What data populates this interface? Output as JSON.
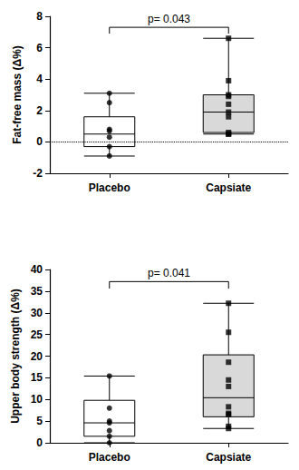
{
  "chart_data": [
    {
      "type": "boxplot",
      "y_label": "Fat-free mass (Δ%)",
      "categories": [
        "Placebo",
        "Capsiate"
      ],
      "boxes": [
        [
          -0.9,
          -0.3,
          0.5,
          1.6,
          3.1
        ],
        [
          0.5,
          0.6,
          1.9,
          3.0,
          6.6
        ]
      ],
      "colors": [
        "#ffffff",
        "#d9d9d9"
      ],
      "points": [
        {
          "marker": "circle",
          "values": [
            3.1,
            2.5,
            0.8,
            0.7,
            0.3,
            -0.3,
            -0.9
          ]
        },
        {
          "marker": "square",
          "values": [
            6.6,
            3.9,
            3.0,
            2.9,
            2.4,
            1.9,
            1.6,
            0.6,
            0.5,
            0.5
          ]
        }
      ],
      "reference_line": 0,
      "annotation": "p= 0.043",
      "ylim": [
        -2,
        8
      ],
      "yticks": [
        -2,
        0,
        2,
        4,
        6,
        8
      ],
      "grid": false
    },
    {
      "type": "boxplot",
      "y_label": "Upper body strength (Δ%)",
      "categories": [
        "Placebo",
        "Capsiate"
      ],
      "boxes": [
        [
          0,
          1.5,
          4.6,
          9.8,
          15.4
        ],
        [
          3.3,
          6.0,
          10.4,
          20.3,
          32.2
        ]
      ],
      "colors": [
        "#ffffff",
        "#d9d9d9"
      ],
      "points": [
        {
          "marker": "circle",
          "values": [
            15.4,
            8.0,
            5.0,
            4.6,
            2.8,
            1.5,
            0.0
          ]
        },
        {
          "marker": "square",
          "values": [
            32.2,
            25.5,
            18.6,
            14.5,
            13.0,
            8.3,
            6.8,
            6.5,
            3.8,
            3.3
          ]
        }
      ],
      "annotation": "p= 0.041",
      "ylim": [
        0,
        40
      ],
      "yticks": [
        0,
        5,
        10,
        15,
        20,
        25,
        30,
        35,
        40
      ],
      "grid": false
    }
  ]
}
